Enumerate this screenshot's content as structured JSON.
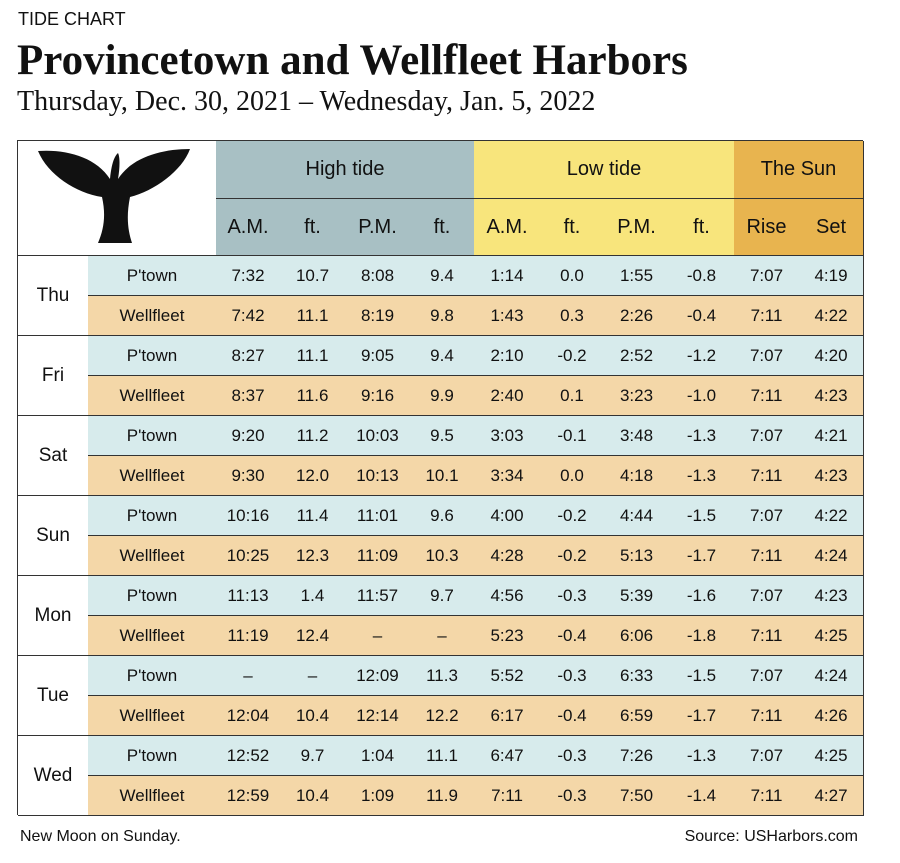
{
  "header": {
    "label": "TIDE CHART",
    "title": "Provincetown and Wellfleet Harbors",
    "subtitle": "Thursday, Dec. 30, 2021 – Wednesday, Jan. 5, 2022"
  },
  "table": {
    "groups": [
      "High tide",
      "Low tide",
      "The Sun"
    ],
    "columns": [
      "A.M.",
      "ft.",
      "P.M.",
      "ft.",
      "A.M.",
      "ft.",
      "P.M.",
      "ft.",
      "Rise",
      "Set"
    ],
    "days": [
      {
        "day": "Thu",
        "rows": [
          {
            "location": "P'town",
            "cells": [
              "7:32",
              "10.7",
              "8:08",
              "9.4",
              "1:14",
              "0.0",
              "1:55",
              "-0.8",
              "7:07",
              "4:19"
            ]
          },
          {
            "location": "Wellfleet",
            "cells": [
              "7:42",
              "11.1",
              "8:19",
              "9.8",
              "1:43",
              "0.3",
              "2:26",
              "-0.4",
              "7:11",
              "4:22"
            ]
          }
        ]
      },
      {
        "day": "Fri",
        "rows": [
          {
            "location": "P'town",
            "cells": [
              "8:27",
              "11.1",
              "9:05",
              "9.4",
              "2:10",
              "-0.2",
              "2:52",
              "-1.2",
              "7:07",
              "4:20"
            ]
          },
          {
            "location": "Wellfleet",
            "cells": [
              "8:37",
              "11.6",
              "9:16",
              "9.9",
              "2:40",
              "0.1",
              "3:23",
              "-1.0",
              "7:11",
              "4:23"
            ]
          }
        ]
      },
      {
        "day": "Sat",
        "rows": [
          {
            "location": "P'town",
            "cells": [
              "9:20",
              "11.2",
              "10:03",
              "9.5",
              "3:03",
              "-0.1",
              "3:48",
              "-1.3",
              "7:07",
              "4:21"
            ]
          },
          {
            "location": "Wellfleet",
            "cells": [
              "9:30",
              "12.0",
              "10:13",
              "10.1",
              "3:34",
              "0.0",
              "4:18",
              "-1.3",
              "7:11",
              "4:23"
            ]
          }
        ]
      },
      {
        "day": "Sun",
        "rows": [
          {
            "location": "P'town",
            "cells": [
              "10:16",
              "11.4",
              "11:01",
              "9.6",
              "4:00",
              "-0.2",
              "4:44",
              "-1.5",
              "7:07",
              "4:22"
            ]
          },
          {
            "location": "Wellfleet",
            "cells": [
              "10:25",
              "12.3",
              "11:09",
              "10.3",
              "4:28",
              "-0.2",
              "5:13",
              "-1.7",
              "7:11",
              "4:24"
            ]
          }
        ]
      },
      {
        "day": "Mon",
        "rows": [
          {
            "location": "P'town",
            "cells": [
              "11:13",
              "1.4",
              "11:57",
              "9.7",
              "4:56",
              "-0.3",
              "5:39",
              "-1.6",
              "7:07",
              "4:23"
            ]
          },
          {
            "location": "Wellfleet",
            "cells": [
              "11:19",
              "12.4",
              "–",
              "–",
              "5:23",
              "-0.4",
              "6:06",
              "-1.8",
              "7:11",
              "4:25"
            ]
          }
        ]
      },
      {
        "day": "Tue",
        "rows": [
          {
            "location": "P'town",
            "cells": [
              "–",
              "–",
              "12:09",
              "11.3",
              "5:52",
              "-0.3",
              "6:33",
              "-1.5",
              "7:07",
              "4:24"
            ]
          },
          {
            "location": "Wellfleet",
            "cells": [
              "12:04",
              "10.4",
              "12:14",
              "12.2",
              "6:17",
              "-0.4",
              "6:59",
              "-1.7",
              "7:11",
              "4:26"
            ]
          }
        ]
      },
      {
        "day": "Wed",
        "rows": [
          {
            "location": "P'town",
            "cells": [
              "12:52",
              "9.7",
              "1:04",
              "11.1",
              "6:47",
              "-0.3",
              "7:26",
              "-1.3",
              "7:07",
              "4:25"
            ]
          },
          {
            "location": "Wellfleet",
            "cells": [
              "12:59",
              "10.4",
              "1:09",
              "11.9",
              "7:11",
              "-0.3",
              "7:50",
              "-1.4",
              "7:11",
              "4:27"
            ]
          }
        ]
      }
    ]
  },
  "footer": {
    "note": "New Moon on Sunday.",
    "source": "Source: USHarbors.com"
  }
}
